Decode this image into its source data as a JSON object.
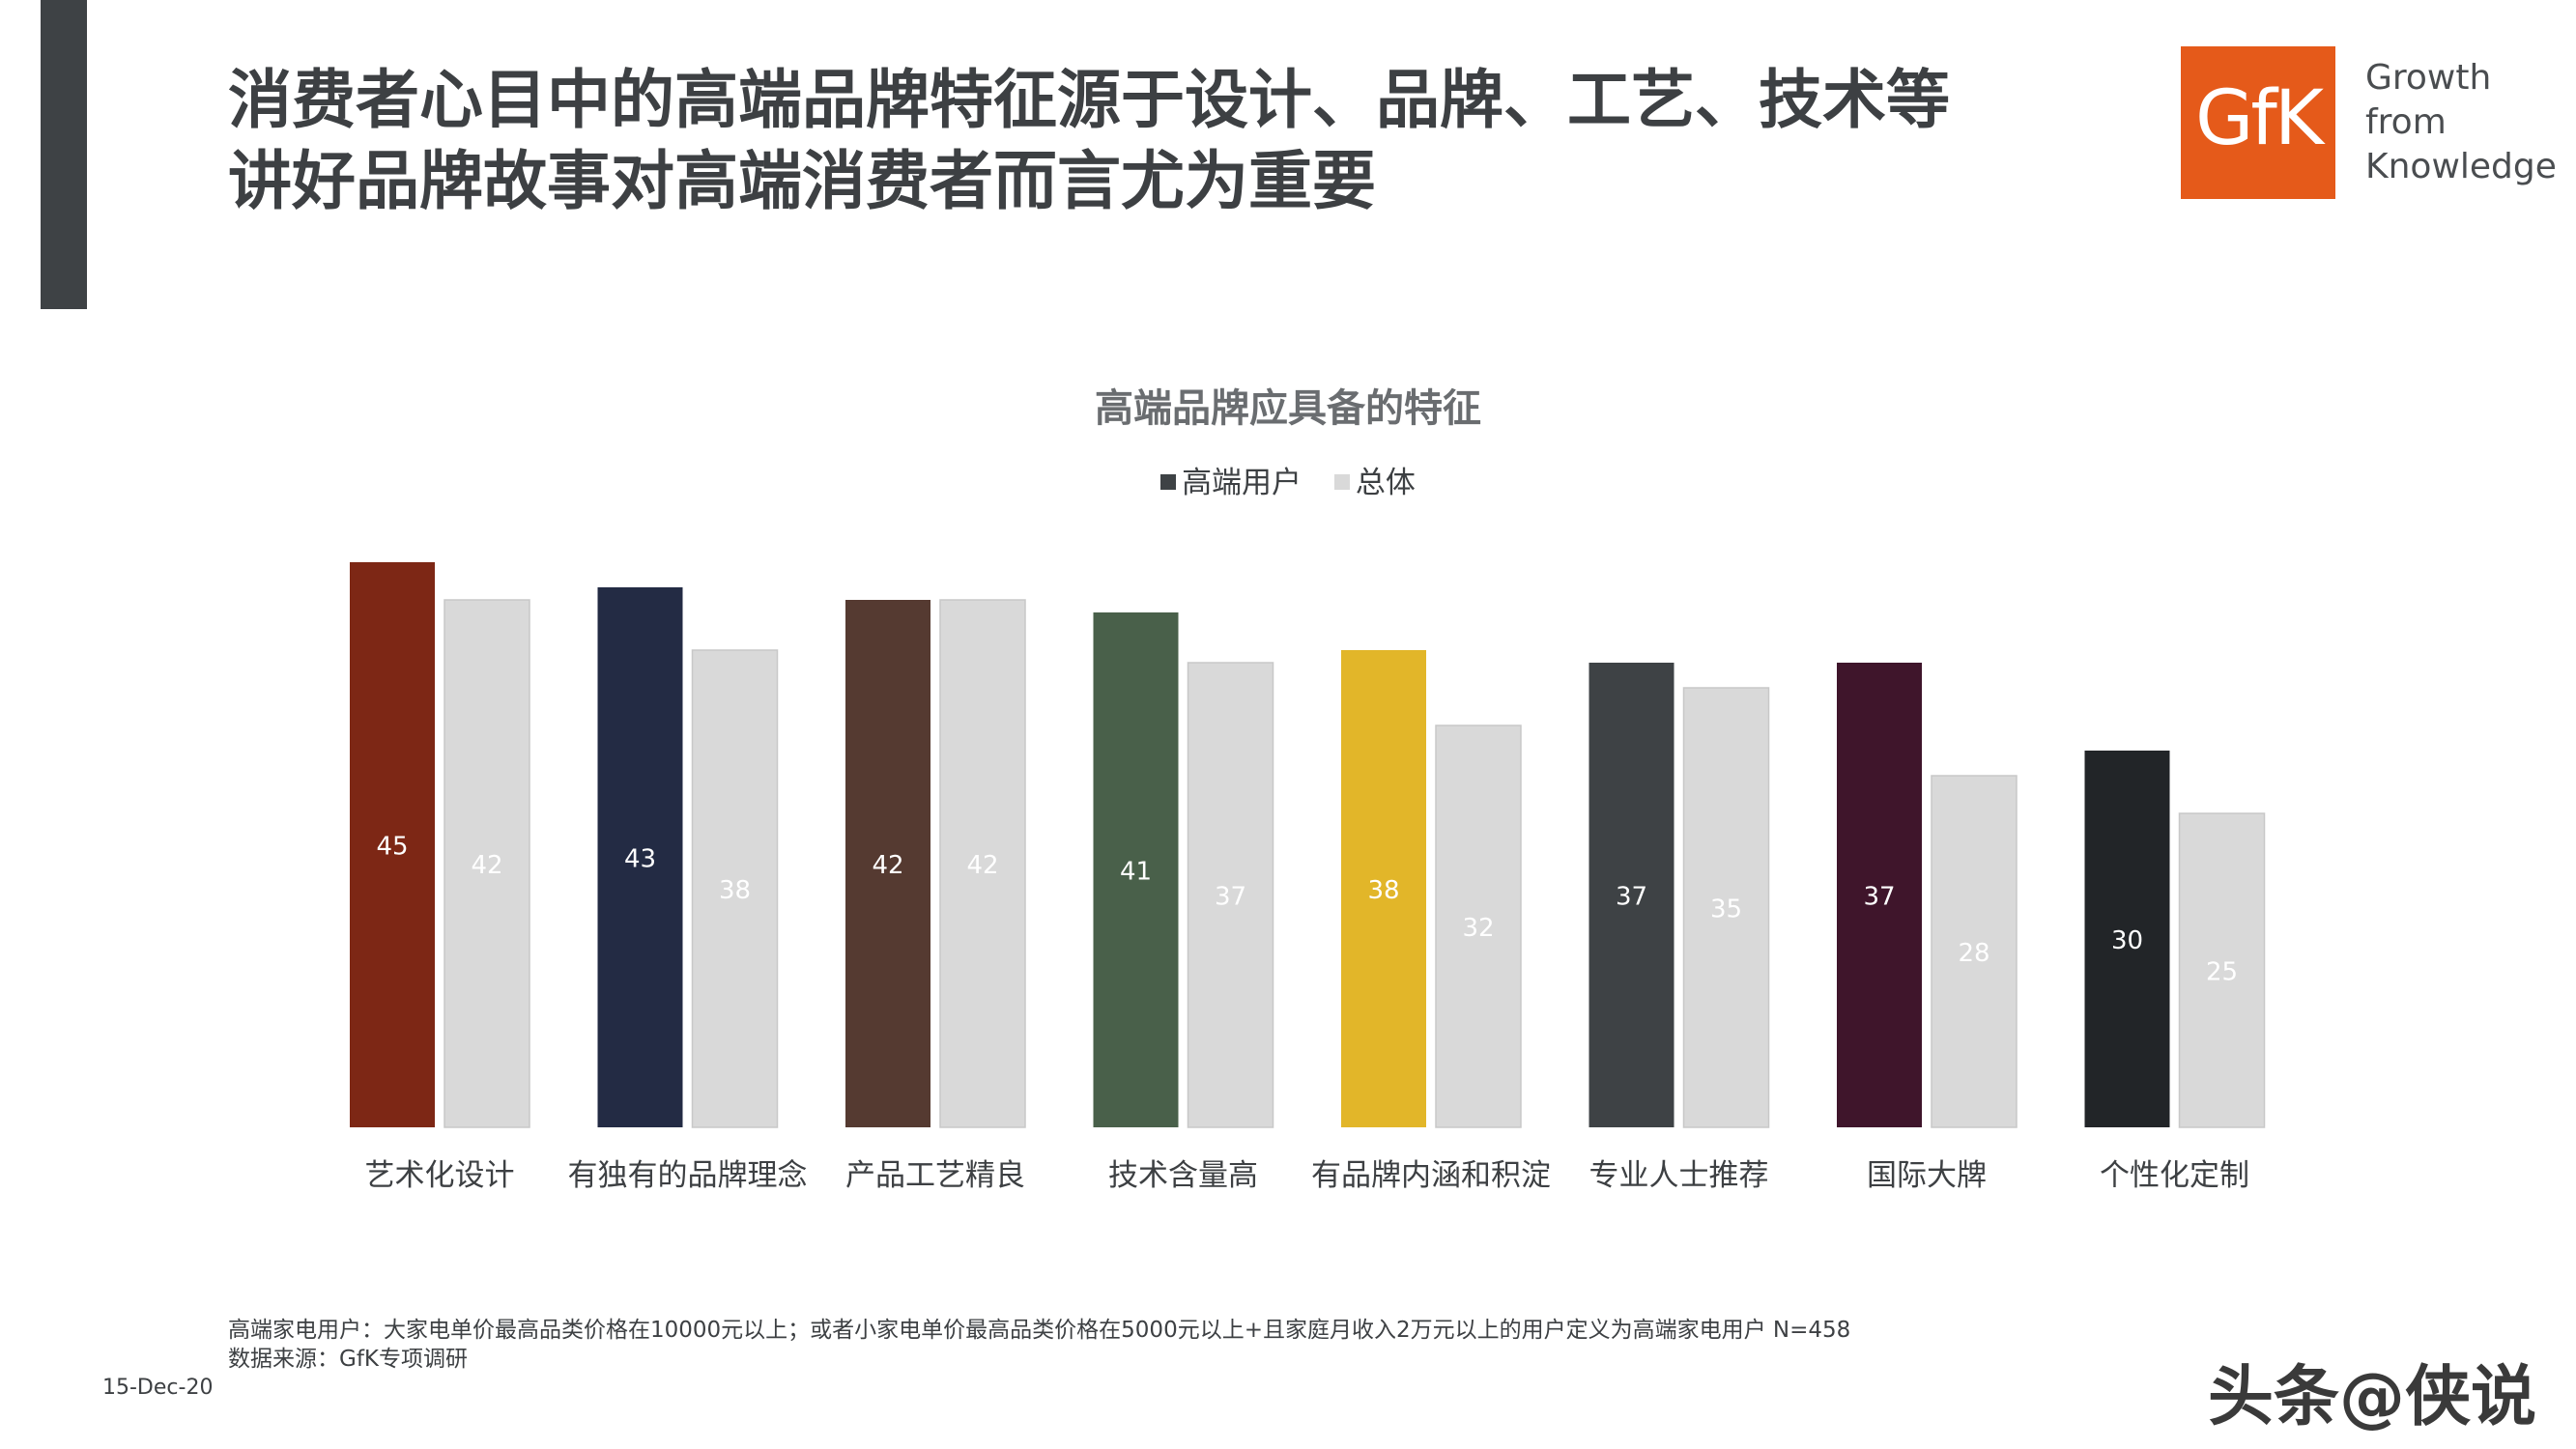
{
  "header": {
    "title_line1": "消费者心目中的高端品牌特征源于设计、品牌、工艺、技术等",
    "title_line2": "讲好品牌故事对高端消费者而言尤为重要"
  },
  "logo": {
    "mark": "GfK",
    "tagline": [
      "Growth",
      "from",
      "Knowledge"
    ]
  },
  "chart_data": {
    "type": "bar",
    "title": "高端品牌应具备的特征",
    "legend_position": "top",
    "grid": false,
    "categories": [
      "艺术化设计",
      "有独有的品牌理念",
      "产品工艺精良",
      "技术含量高",
      "有品牌内涵和积淀",
      "专业人士推荐",
      "国际大牌",
      "个性化定制"
    ],
    "series": [
      {
        "name": "高端用户",
        "values": [
          45,
          43,
          42,
          41,
          38,
          37,
          37,
          30
        ],
        "colors": [
          "#7d2715",
          "#232b44",
          "#553a31",
          "#49604a",
          "#e2b629",
          "#3e4245",
          "#3f152b",
          "#222528"
        ]
      },
      {
        "name": "总体",
        "values": [
          42,
          38,
          42,
          37,
          32,
          35,
          28,
          25
        ],
        "color": "#d9d9d9"
      }
    ],
    "legend_colors": [
      "#3e4245",
      "#d9d9d9"
    ],
    "ylim": [
      0,
      45
    ]
  },
  "footer": {
    "note": "高端家电用户：大家电单价最高品类价格在10000元以上；或者小家电单价最高品类价格在5000元以上+且家庭月收入2万元以上的用户定义为高端家电用户 N=458",
    "source": "数据来源：GfK专项调研",
    "date": "15-Dec-20",
    "watermark": "头条@侠说"
  }
}
